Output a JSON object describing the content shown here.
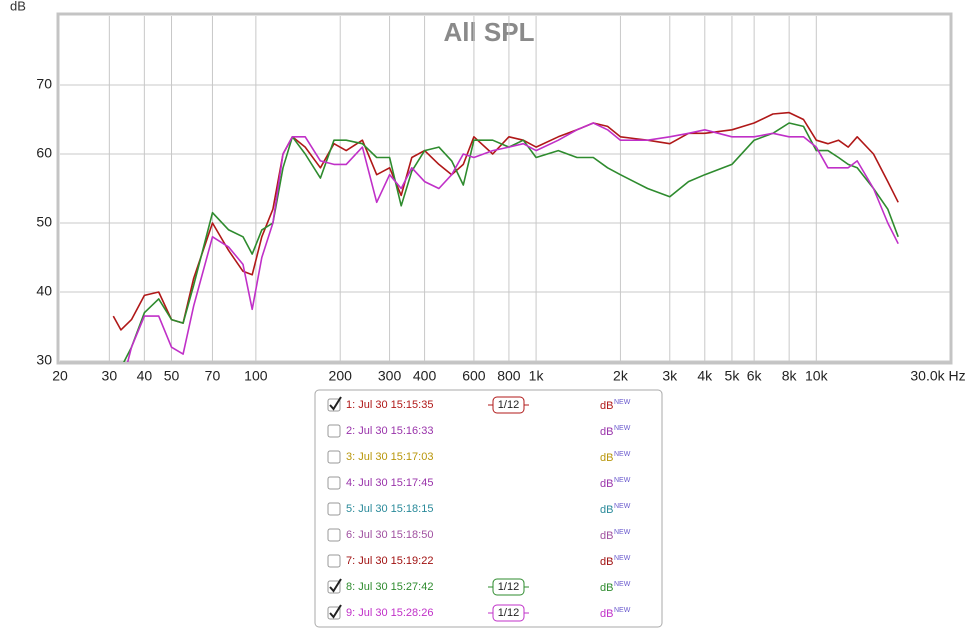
{
  "chart_data": {
    "type": "line",
    "title": "All SPL",
    "y_label": "dB",
    "x_scale": "log",
    "grid": true,
    "xlim": [
      20,
      30000
    ],
    "ylim": [
      30,
      80
    ],
    "xticks": [
      20,
      30,
      40,
      50,
      70,
      100,
      200,
      300,
      400,
      600,
      800,
      {
        "value": 1000,
        "label": "1k"
      },
      {
        "value": 2000,
        "label": "2k"
      },
      {
        "value": 3000,
        "label": "3k"
      },
      {
        "value": 4000,
        "label": "4k"
      },
      {
        "value": 5000,
        "label": "5k"
      },
      {
        "value": 6000,
        "label": "6k"
      },
      {
        "value": 8000,
        "label": "8k"
      },
      {
        "value": 10000,
        "label": "10k"
      },
      {
        "value": 30000,
        "label": "30.0k Hz"
      }
    ],
    "yticks": [
      30,
      40,
      50,
      60,
      70
    ],
    "x": [
      31,
      33,
      36,
      40,
      45,
      50,
      55,
      60,
      70,
      80,
      90,
      97,
      105,
      115,
      125,
      135,
      150,
      170,
      190,
      210,
      240,
      270,
      300,
      330,
      360,
      400,
      450,
      500,
      550,
      600,
      700,
      800,
      900,
      1000,
      1200,
      1400,
      1600,
      1800,
      2000,
      2500,
      3000,
      3500,
      4000,
      5000,
      6000,
      7000,
      8000,
      9000,
      10000,
      11000,
      12000,
      13000,
      14000,
      16000,
      18000,
      19600
    ],
    "series": [
      {
        "name": "1: Jul 30 15:15:35",
        "color": "#b01818",
        "checked": true,
        "smoothing": "1/12",
        "unit": "dB",
        "tag": "NEW",
        "values": [
          36.5,
          34.5,
          36,
          39.5,
          40,
          36,
          35.5,
          42,
          50,
          46,
          43,
          42.5,
          48,
          52,
          60,
          62.5,
          61,
          58,
          61.5,
          60.5,
          62,
          57,
          58,
          54,
          59.5,
          60.5,
          58.5,
          57,
          58.5,
          62.5,
          60,
          62.5,
          62,
          61,
          62.5,
          63.5,
          64.5,
          64,
          62.5,
          62,
          61.5,
          63,
          63,
          63.5,
          64.5,
          65.8,
          66,
          65,
          62,
          61.5,
          62,
          61,
          62.5,
          60,
          56,
          53
        ]
      },
      {
        "name": "2: Jul 30 15:16:33",
        "color": "#9933aa",
        "checked": false,
        "unit": "dB",
        "tag": "NEW"
      },
      {
        "name": "3: Jul 30 15:17:03",
        "color": "#b8960a",
        "checked": false,
        "unit": "dB",
        "tag": "NEW"
      },
      {
        "name": "4: Jul 30 15:17:45",
        "color": "#9933aa",
        "checked": false,
        "unit": "dB",
        "tag": "NEW"
      },
      {
        "name": "5: Jul 30 15:18:15",
        "color": "#2a8a9a",
        "checked": false,
        "unit": "dB",
        "tag": "NEW"
      },
      {
        "name": "6: Jul 30 15:18:50",
        "color": "#a050a0",
        "checked": false,
        "unit": "dB",
        "tag": "NEW"
      },
      {
        "name": "7: Jul 30 15:19:22",
        "color": "#a01010",
        "checked": false,
        "unit": "dB",
        "tag": "NEW"
      },
      {
        "name": "8: Jul 30 15:27:42",
        "color": "#2e8b2e",
        "checked": true,
        "smoothing": "1/12",
        "unit": "dB",
        "tag": "NEW",
        "values": [
          27,
          29,
          32,
          37,
          39,
          36,
          35.5,
          41,
          51.5,
          49,
          48,
          45.5,
          49,
          50,
          58,
          62.5,
          60,
          56.5,
          62,
          62,
          61.5,
          59.5,
          59.5,
          52.5,
          57.5,
          60.5,
          61,
          59,
          55.5,
          62,
          62,
          61,
          62,
          59.5,
          60.5,
          59.5,
          59.5,
          58,
          57,
          55,
          53.8,
          56,
          57,
          58.5,
          62,
          63,
          64.5,
          64,
          60.5,
          60.5,
          59.5,
          58.5,
          58,
          55,
          52,
          48
        ]
      },
      {
        "name": "9: Jul 30 15:28:26",
        "color": "#c030c8",
        "checked": true,
        "smoothing": "1/12",
        "unit": "dB",
        "tag": "NEW",
        "values": [
          23,
          26,
          32,
          36.5,
          36.5,
          32,
          31,
          38,
          48,
          46.5,
          44,
          37.5,
          45,
          50,
          60,
          62.5,
          62.5,
          59,
          58.5,
          58.5,
          61,
          53,
          57,
          55,
          58,
          56,
          55,
          57,
          60,
          59.5,
          60.5,
          61,
          61.5,
          60.5,
          62,
          63.5,
          64.5,
          63.5,
          62,
          62,
          62.5,
          63,
          63.5,
          62.5,
          62.5,
          63,
          62.5,
          62.5,
          61,
          58,
          58,
          58,
          59,
          55,
          50,
          47
        ]
      }
    ]
  }
}
